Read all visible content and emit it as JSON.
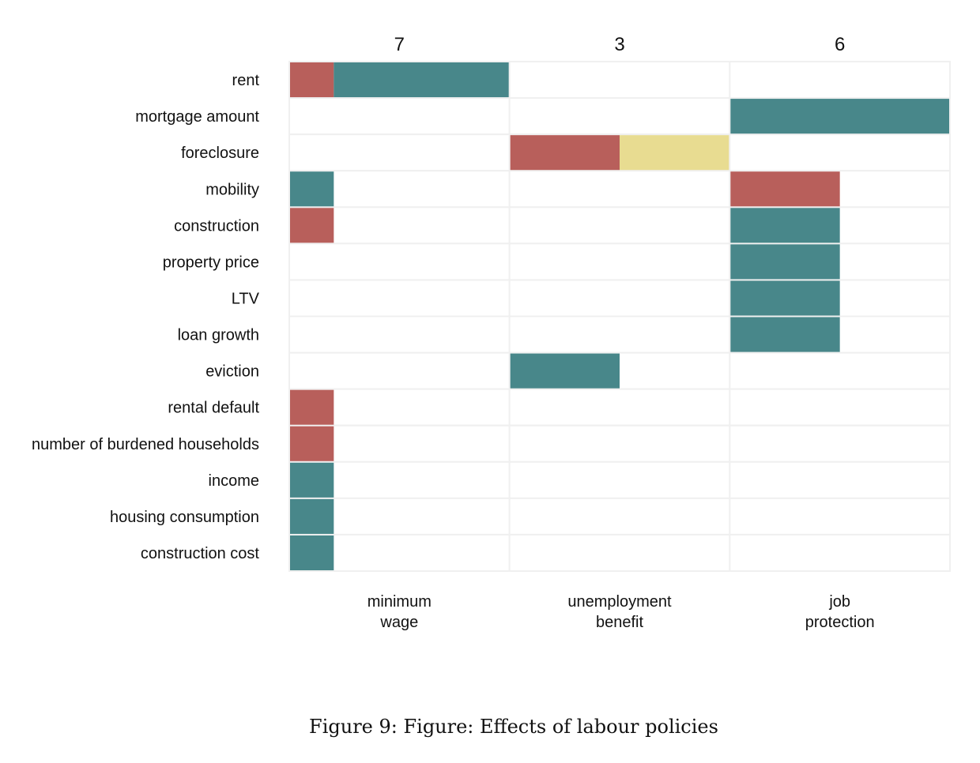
{
  "chart_data": {
    "type": "heatmap",
    "title": "",
    "columns": [
      {
        "label": "minimum wage",
        "label_lines": [
          "minimum",
          "wage"
        ],
        "count": "7"
      },
      {
        "label": "unemployment benefit",
        "label_lines": [
          "unemployment",
          "benefit"
        ],
        "count": "3"
      },
      {
        "label": "job protection",
        "label_lines": [
          "job",
          "protection"
        ],
        "count": "6"
      }
    ],
    "rows": [
      "rent",
      "mortgage amount",
      "foreclosure",
      "mobility",
      "construction",
      "property price",
      "LTV",
      "loan growth",
      "eviction",
      "rental default",
      "number of burdened households",
      "income",
      "housing consumption",
      "construction cost"
    ],
    "series_colors": {
      "red": "#B85F5B",
      "teal": "#48878A",
      "yellow": "#E8DC91"
    },
    "series_order": [
      "red",
      "teal",
      "yellow"
    ],
    "values": [
      {
        "row": "rent",
        "column": 0,
        "red": 1,
        "teal": 4,
        "yellow": 0
      },
      {
        "row": "mobility",
        "column": 0,
        "red": 0,
        "teal": 1,
        "yellow": 0
      },
      {
        "row": "construction",
        "column": 0,
        "red": 1,
        "teal": 0,
        "yellow": 0
      },
      {
        "row": "rental default",
        "column": 0,
        "red": 1,
        "teal": 0,
        "yellow": 0
      },
      {
        "row": "number of burdened households",
        "column": 0,
        "red": 1,
        "teal": 0,
        "yellow": 0
      },
      {
        "row": "income",
        "column": 0,
        "red": 0,
        "teal": 1,
        "yellow": 0
      },
      {
        "row": "housing consumption",
        "column": 0,
        "red": 0,
        "teal": 1,
        "yellow": 0
      },
      {
        "row": "construction cost",
        "column": 0,
        "red": 0,
        "teal": 1,
        "yellow": 0
      },
      {
        "row": "foreclosure",
        "column": 1,
        "red": 1,
        "teal": 0,
        "yellow": 1
      },
      {
        "row": "eviction",
        "column": 1,
        "red": 0,
        "teal": 1,
        "yellow": 0
      },
      {
        "row": "mortgage amount",
        "column": 2,
        "red": 0,
        "teal": 2,
        "yellow": 0
      },
      {
        "row": "mobility",
        "column": 2,
        "red": 1,
        "teal": 0,
        "yellow": 0
      },
      {
        "row": "construction",
        "column": 2,
        "red": 0,
        "teal": 1,
        "yellow": 0
      },
      {
        "row": "property price",
        "column": 2,
        "red": 0,
        "teal": 1,
        "yellow": 0
      },
      {
        "row": "LTV",
        "column": 2,
        "red": 0,
        "teal": 1,
        "yellow": 0
      },
      {
        "row": "loan growth",
        "column": 2,
        "red": 0,
        "teal": 1,
        "yellow": 0
      }
    ],
    "grid": true,
    "legend": "none"
  },
  "caption": "Figure 9: Figure: Effects of labour policies"
}
